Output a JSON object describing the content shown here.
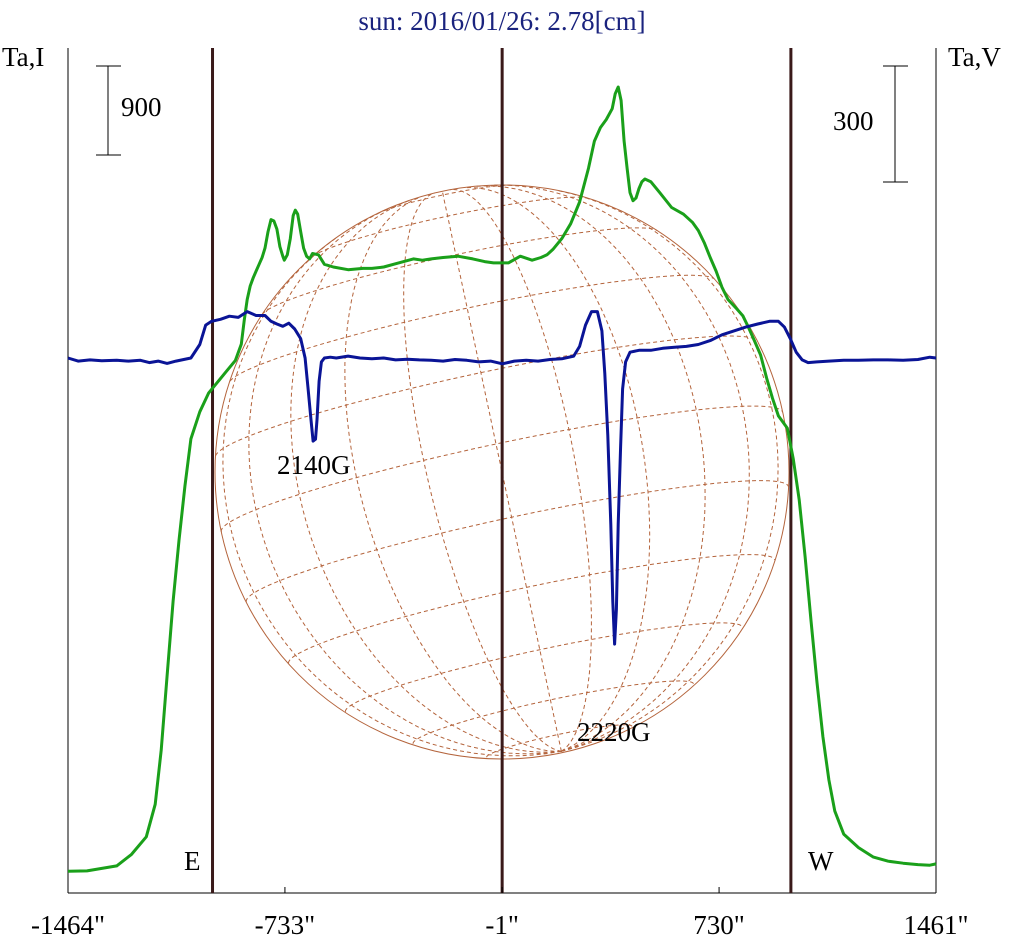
{
  "chart_data": {
    "type": "line",
    "title": "sun: 2016/01/26: 2.78[cm]",
    "left_axis_label": "Ta,I",
    "right_axis_label": "Ta,V",
    "x_ticks": [
      "-1464\"",
      "-733\"",
      "-1\"",
      "730\"",
      "1461\""
    ],
    "x_tick_values": [
      -1464,
      -733,
      -1,
      730,
      1461
    ],
    "xlim": [
      -1464,
      1461
    ],
    "scale_bar_left": "900",
    "scale_bar_right": "300",
    "limb_labels": {
      "east": "E",
      "west": "W"
    },
    "vertical_lines_x": [
      -977,
      -1,
      972
    ],
    "annotations": [
      {
        "text": "2140G",
        "x": -636
      },
      {
        "text": "2220G",
        "x": 375
      }
    ],
    "colors": {
      "title": "#1a237e",
      "intensity": "#1aa01a",
      "polarization": "#0a1496",
      "vertical_lines": "#3a1a1a",
      "disk_grid": "#b4643c"
    },
    "series": [
      {
        "key": "intensity",
        "points": [
          [
            -1464,
            5
          ],
          [
            -1400,
            8
          ],
          [
            -1300,
            45
          ],
          [
            -1250,
            130
          ],
          [
            -1200,
            260
          ],
          [
            -1170,
            500
          ],
          [
            -1150,
            900
          ],
          [
            -1130,
            1450
          ],
          [
            -1110,
            2000
          ],
          [
            -1090,
            2450
          ],
          [
            -1070,
            2850
          ],
          [
            -1050,
            3200
          ],
          [
            -1020,
            3400
          ],
          [
            -990,
            3540
          ],
          [
            -960,
            3620
          ],
          [
            -930,
            3700
          ],
          [
            -900,
            3780
          ],
          [
            -880,
            3900
          ],
          [
            -870,
            4080
          ],
          [
            -860,
            4230
          ],
          [
            -850,
            4330
          ],
          [
            -840,
            4390
          ],
          [
            -830,
            4440
          ],
          [
            -820,
            4490
          ],
          [
            -810,
            4540
          ],
          [
            -800,
            4610
          ],
          [
            -790,
            4730
          ],
          [
            -780,
            4820
          ],
          [
            -770,
            4810
          ],
          [
            -760,
            4750
          ],
          [
            -750,
            4620
          ],
          [
            -740,
            4550
          ],
          [
            -735,
            4520
          ],
          [
            -725,
            4560
          ],
          [
            -715,
            4680
          ],
          [
            -705,
            4850
          ],
          [
            -698,
            4890
          ],
          [
            -690,
            4860
          ],
          [
            -680,
            4730
          ],
          [
            -670,
            4610
          ],
          [
            -660,
            4550
          ],
          [
            -650,
            4530
          ],
          [
            -640,
            4570
          ],
          [
            -620,
            4560
          ],
          [
            -600,
            4490
          ],
          [
            -570,
            4470
          ],
          [
            -520,
            4450
          ],
          [
            -470,
            4460
          ],
          [
            -440,
            4460
          ],
          [
            -400,
            4470
          ],
          [
            -350,
            4500
          ],
          [
            -300,
            4530
          ],
          [
            -270,
            4520
          ],
          [
            -240,
            4530
          ],
          [
            -200,
            4540
          ],
          [
            -150,
            4550
          ],
          [
            -100,
            4530
          ],
          [
            -60,
            4510
          ],
          [
            -30,
            4500
          ],
          [
            -10,
            4500
          ],
          [
            20,
            4500
          ],
          [
            60,
            4550
          ],
          [
            100,
            4520
          ],
          [
            130,
            4540
          ],
          [
            150,
            4560
          ],
          [
            170,
            4600
          ],
          [
            200,
            4680
          ],
          [
            230,
            4790
          ],
          [
            260,
            4950
          ],
          [
            290,
            5200
          ],
          [
            310,
            5400
          ],
          [
            330,
            5500
          ],
          [
            350,
            5560
          ],
          [
            370,
            5640
          ],
          [
            380,
            5750
          ],
          [
            390,
            5800
          ],
          [
            400,
            5700
          ],
          [
            410,
            5400
          ],
          [
            420,
            5200
          ],
          [
            430,
            5020
          ],
          [
            440,
            4960
          ],
          [
            450,
            4980
          ],
          [
            460,
            5050
          ],
          [
            470,
            5100
          ],
          [
            480,
            5120
          ],
          [
            500,
            5100
          ],
          [
            530,
            5020
          ],
          [
            570,
            4910
          ],
          [
            610,
            4860
          ],
          [
            640,
            4800
          ],
          [
            660,
            4740
          ],
          [
            680,
            4650
          ],
          [
            700,
            4540
          ],
          [
            720,
            4440
          ],
          [
            740,
            4320
          ],
          [
            760,
            4230
          ],
          [
            790,
            4160
          ],
          [
            810,
            4110
          ],
          [
            830,
            4020
          ],
          [
            850,
            3920
          ],
          [
            870,
            3820
          ],
          [
            890,
            3650
          ],
          [
            910,
            3500
          ],
          [
            930,
            3370
          ],
          [
            960,
            3280
          ],
          [
            980,
            3050
          ],
          [
            1000,
            2750
          ],
          [
            1020,
            2330
          ],
          [
            1040,
            1850
          ],
          [
            1060,
            1400
          ],
          [
            1080,
            1000
          ],
          [
            1100,
            680
          ],
          [
            1120,
            450
          ],
          [
            1150,
            280
          ],
          [
            1200,
            180
          ],
          [
            1250,
            110
          ],
          [
            1300,
            80
          ],
          [
            1350,
            65
          ],
          [
            1400,
            55
          ],
          [
            1440,
            50
          ],
          [
            1461,
            60
          ]
        ]
      },
      {
        "key": "polarization",
        "points": [
          [
            -1464,
            0
          ],
          [
            -1430,
            -8
          ],
          [
            -1390,
            -5
          ],
          [
            -1350,
            -7
          ],
          [
            -1300,
            -6
          ],
          [
            -1260,
            -8
          ],
          [
            -1220,
            -6
          ],
          [
            -1190,
            -12
          ],
          [
            -1160,
            -8
          ],
          [
            -1130,
            -14
          ],
          [
            -1100,
            -8
          ],
          [
            -1050,
            0
          ],
          [
            -1020,
            35
          ],
          [
            -1000,
            85
          ],
          [
            -980,
            95
          ],
          [
            -950,
            100
          ],
          [
            -920,
            108
          ],
          [
            -890,
            105
          ],
          [
            -860,
            120
          ],
          [
            -830,
            110
          ],
          [
            -800,
            110
          ],
          [
            -780,
            95
          ],
          [
            -760,
            88
          ],
          [
            -740,
            82
          ],
          [
            -720,
            90
          ],
          [
            -700,
            75
          ],
          [
            -680,
            50
          ],
          [
            -665,
            0
          ],
          [
            -655,
            -80
          ],
          [
            -645,
            -160
          ],
          [
            -638,
            -215
          ],
          [
            -630,
            -210
          ],
          [
            -625,
            -160
          ],
          [
            -618,
            -60
          ],
          [
            -610,
            -10
          ],
          [
            -600,
            0
          ],
          [
            -580,
            2
          ],
          [
            -560,
            0
          ],
          [
            -520,
            5
          ],
          [
            -480,
            0
          ],
          [
            -440,
            -2
          ],
          [
            -400,
            0
          ],
          [
            -360,
            -5
          ],
          [
            -320,
            -3
          ],
          [
            -280,
            -5
          ],
          [
            -240,
            -6
          ],
          [
            -200,
            -8
          ],
          [
            -160,
            -4
          ],
          [
            -120,
            -6
          ],
          [
            -80,
            -10
          ],
          [
            -40,
            -8
          ],
          [
            0,
            -15
          ],
          [
            40,
            -8
          ],
          [
            80,
            -6
          ],
          [
            120,
            -8
          ],
          [
            160,
            -4
          ],
          [
            200,
            -2
          ],
          [
            240,
            5
          ],
          [
            260,
            30
          ],
          [
            280,
            85
          ],
          [
            300,
            120
          ],
          [
            320,
            120
          ],
          [
            335,
            70
          ],
          [
            345,
            -40
          ],
          [
            355,
            -200
          ],
          [
            365,
            -430
          ],
          [
            372,
            -630
          ],
          [
            378,
            -740
          ],
          [
            384,
            -650
          ],
          [
            390,
            -430
          ],
          [
            398,
            -230
          ],
          [
            405,
            -80
          ],
          [
            415,
            -10
          ],
          [
            430,
            15
          ],
          [
            460,
            20
          ],
          [
            500,
            20
          ],
          [
            540,
            25
          ],
          [
            580,
            28
          ],
          [
            620,
            30
          ],
          [
            660,
            35
          ],
          [
            700,
            45
          ],
          [
            740,
            60
          ],
          [
            780,
            70
          ],
          [
            820,
            80
          ],
          [
            860,
            88
          ],
          [
            900,
            95
          ],
          [
            930,
            95
          ],
          [
            950,
            80
          ],
          [
            970,
            50
          ],
          [
            990,
            15
          ],
          [
            1010,
            -5
          ],
          [
            1030,
            -12
          ],
          [
            1060,
            -10
          ],
          [
            1100,
            -8
          ],
          [
            1150,
            -6
          ],
          [
            1200,
            -6
          ],
          [
            1250,
            -5
          ],
          [
            1300,
            -5
          ],
          [
            1350,
            -6
          ],
          [
            1400,
            -4
          ],
          [
            1440,
            2
          ],
          [
            1461,
            0
          ]
        ]
      }
    ]
  }
}
